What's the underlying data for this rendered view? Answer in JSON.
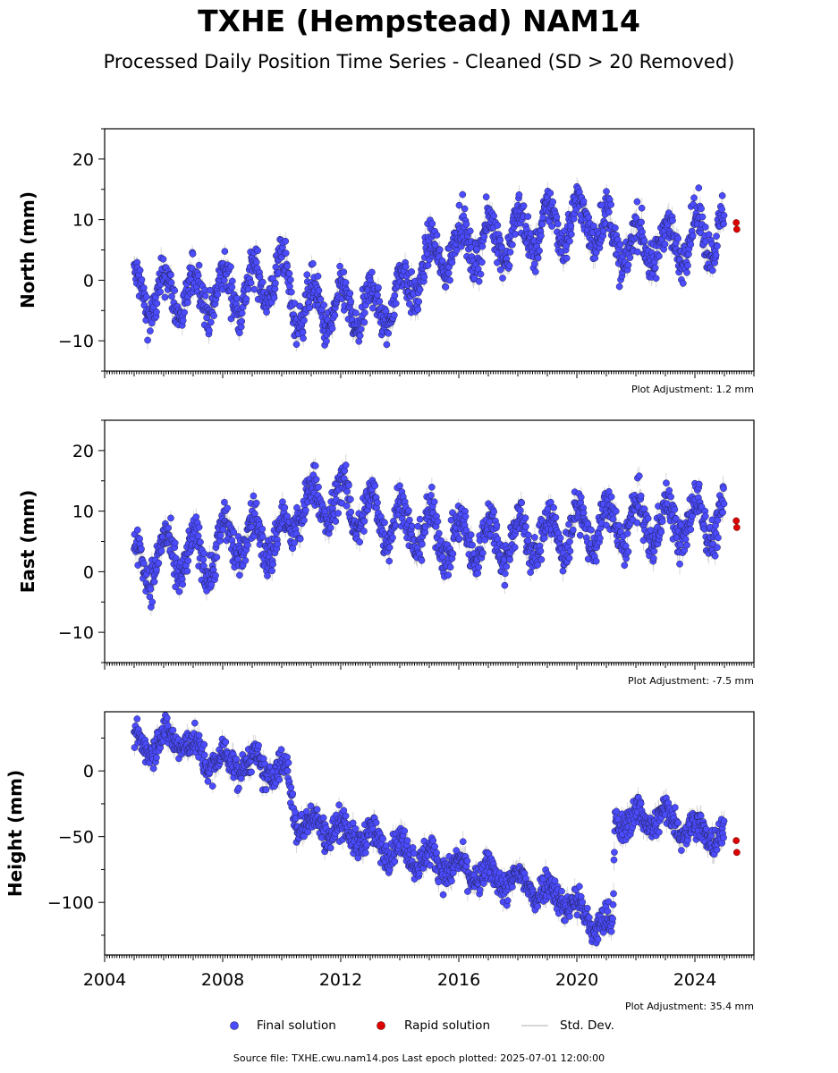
{
  "title": "TXHE (Hempstead) NAM14",
  "subtitle": "Processed Daily Position Time Series - Cleaned (SD > 20 Removed)",
  "colors": {
    "final": "#4b4bff",
    "final_edge": "#222255",
    "rapid": "#dd0000",
    "stddev": "#c8c8c8"
  },
  "legend": {
    "final": "Final solution",
    "rapid": "Rapid solution",
    "stddev": "Std. Dev."
  },
  "footer": "Source file: TXHE.cwu.nam14.pos  Last epoch plotted: 2025-07-01 12:00:00",
  "chart_data": [
    {
      "type": "scatter",
      "ylabel": "North (mm)",
      "xlim": [
        2004,
        2026
      ],
      "ylim": [
        -15,
        25
      ],
      "yticks": [
        -10,
        0,
        10,
        20
      ],
      "ytick_labels": [
        "−10",
        "0",
        "10",
        "20"
      ],
      "adjustment_label": "Plot Adjustment: 1.2 mm",
      "rapid_values": [
        [
          2025.4,
          9.5
        ],
        [
          2025.42,
          8.4
        ]
      ],
      "final_trend": [
        [
          2005.0,
          -2.5
        ],
        [
          2007.0,
          -2.5
        ],
        [
          2009.0,
          -1.5
        ],
        [
          2010.0,
          1.5
        ],
        [
          2010.4,
          -4.0
        ],
        [
          2012.0,
          -5.0
        ],
        [
          2013.5,
          -4.5
        ],
        [
          2014.2,
          -1.5
        ],
        [
          2015.0,
          3.0
        ],
        [
          2016.0,
          6.0
        ],
        [
          2017.0,
          6.5
        ],
        [
          2018.5,
          8.0
        ],
        [
          2019.5,
          9.5
        ],
        [
          2020.5,
          10.0
        ],
        [
          2021.0,
          8.0
        ],
        [
          2021.5,
          5.5
        ],
        [
          2023.0,
          6.0
        ],
        [
          2024.0,
          7.0
        ],
        [
          2025.0,
          8.5
        ]
      ]
    },
    {
      "type": "scatter",
      "ylabel": "East (mm)",
      "xlim": [
        2004,
        2026
      ],
      "ylim": [
        -15,
        25
      ],
      "yticks": [
        -10,
        0,
        10,
        20
      ],
      "ytick_labels": [
        "−10",
        "0",
        "10",
        "20"
      ],
      "adjustment_label": "Plot Adjustment: -7.5 mm",
      "rapid_values": [
        [
          2025.4,
          8.4
        ],
        [
          2025.42,
          7.3
        ]
      ],
      "final_trend": [
        [
          2005.0,
          1.0
        ],
        [
          2006.0,
          2.5
        ],
        [
          2007.5,
          2.5
        ],
        [
          2008.2,
          5.5
        ],
        [
          2010.3,
          5.5
        ],
        [
          2010.5,
          11.0
        ],
        [
          2012.0,
          11.5
        ],
        [
          2013.0,
          9.5
        ],
        [
          2014.0,
          8.0
        ],
        [
          2016.0,
          5.0
        ],
        [
          2018.0,
          5.5
        ],
        [
          2019.0,
          6.0
        ],
        [
          2020.0,
          7.0
        ],
        [
          2021.0,
          7.5
        ],
        [
          2022.0,
          8.0
        ],
        [
          2023.0,
          8.0
        ],
        [
          2024.0,
          8.5
        ],
        [
          2025.0,
          8.5
        ]
      ]
    },
    {
      "type": "scatter",
      "ylabel": "Height (mm)",
      "xlabel": "",
      "xlim": [
        2004,
        2026
      ],
      "ylim": [
        -140,
        45
      ],
      "yticks": [
        -100,
        -50,
        0
      ],
      "ytick_labels": [
        "−100",
        "−50",
        "0"
      ],
      "xticks": [
        2004,
        2008,
        2012,
        2016,
        2020,
        2024
      ],
      "adjustment_label": "Plot Adjustment: 35.4 mm",
      "rapid_values": [
        [
          2025.4,
          -53
        ],
        [
          2025.42,
          -62
        ]
      ],
      "final_trend": [
        [
          2005.0,
          20
        ],
        [
          2006.5,
          25
        ],
        [
          2007.5,
          8
        ],
        [
          2009.0,
          5
        ],
        [
          2010.2,
          -3
        ],
        [
          2010.5,
          -38
        ],
        [
          2012.0,
          -45
        ],
        [
          2014.0,
          -60
        ],
        [
          2016.0,
          -75
        ],
        [
          2018.0,
          -85
        ],
        [
          2019.5,
          -95
        ],
        [
          2020.5,
          -115
        ],
        [
          2021.2,
          -120
        ],
        [
          2021.3,
          -38
        ],
        [
          2023.0,
          -35
        ],
        [
          2024.0,
          -45
        ],
        [
          2025.0,
          -52
        ]
      ]
    }
  ]
}
